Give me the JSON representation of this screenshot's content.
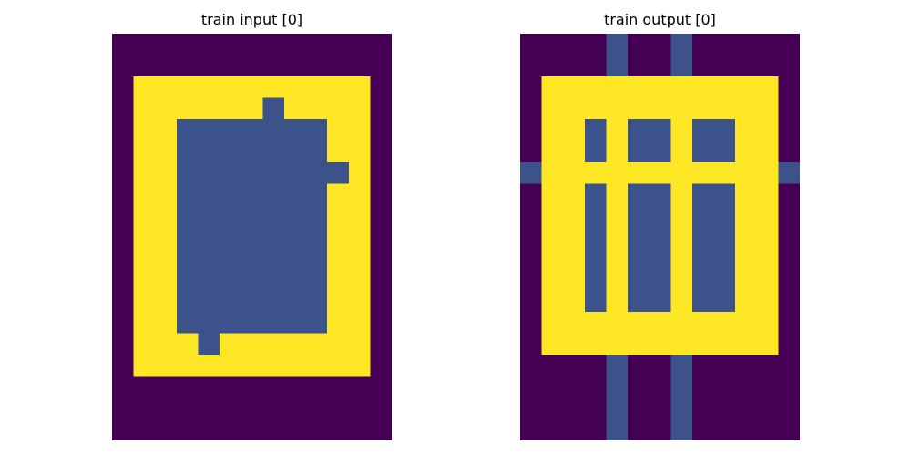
{
  "palette": {
    "0": "#440154",
    "1": "#3b528b",
    "2": "#fde725"
  },
  "panels": [
    {
      "title": "train input [0]",
      "grid": [
        [
          0,
          0,
          0,
          0,
          0,
          0,
          0,
          0,
          0,
          0,
          0,
          0,
          0
        ],
        [
          0,
          0,
          0,
          0,
          0,
          0,
          0,
          0,
          0,
          0,
          0,
          0,
          0
        ],
        [
          0,
          2,
          2,
          2,
          2,
          2,
          2,
          2,
          2,
          2,
          2,
          2,
          0
        ],
        [
          0,
          2,
          2,
          2,
          2,
          2,
          2,
          1,
          2,
          2,
          2,
          2,
          0
        ],
        [
          0,
          2,
          2,
          1,
          1,
          1,
          1,
          1,
          1,
          1,
          2,
          2,
          0
        ],
        [
          0,
          2,
          2,
          1,
          1,
          1,
          1,
          1,
          1,
          1,
          2,
          2,
          0
        ],
        [
          0,
          2,
          2,
          1,
          1,
          1,
          1,
          1,
          1,
          1,
          1,
          2,
          0
        ],
        [
          0,
          2,
          2,
          1,
          1,
          1,
          1,
          1,
          1,
          1,
          2,
          2,
          0
        ],
        [
          0,
          2,
          2,
          1,
          1,
          1,
          1,
          1,
          1,
          1,
          2,
          2,
          0
        ],
        [
          0,
          2,
          2,
          1,
          1,
          1,
          1,
          1,
          1,
          1,
          2,
          2,
          0
        ],
        [
          0,
          2,
          2,
          1,
          1,
          1,
          1,
          1,
          1,
          1,
          2,
          2,
          0
        ],
        [
          0,
          2,
          2,
          1,
          1,
          1,
          1,
          1,
          1,
          1,
          2,
          2,
          0
        ],
        [
          0,
          2,
          2,
          1,
          1,
          1,
          1,
          1,
          1,
          1,
          2,
          2,
          0
        ],
        [
          0,
          2,
          2,
          1,
          1,
          1,
          1,
          1,
          1,
          1,
          2,
          2,
          0
        ],
        [
          0,
          2,
          2,
          2,
          1,
          2,
          2,
          2,
          2,
          2,
          2,
          2,
          0
        ],
        [
          0,
          2,
          2,
          2,
          2,
          2,
          2,
          2,
          2,
          2,
          2,
          2,
          0
        ],
        [
          0,
          0,
          0,
          0,
          0,
          0,
          0,
          0,
          0,
          0,
          0,
          0,
          0
        ],
        [
          0,
          0,
          0,
          0,
          0,
          0,
          0,
          0,
          0,
          0,
          0,
          0,
          0
        ],
        [
          0,
          0,
          0,
          0,
          0,
          0,
          0,
          0,
          0,
          0,
          0,
          0,
          0
        ]
      ]
    },
    {
      "title": "train output [0]",
      "grid": [
        [
          0,
          0,
          0,
          0,
          1,
          0,
          0,
          1,
          0,
          0,
          0,
          0,
          0
        ],
        [
          0,
          0,
          0,
          0,
          1,
          0,
          0,
          1,
          0,
          0,
          0,
          0,
          0
        ],
        [
          0,
          2,
          2,
          2,
          2,
          2,
          2,
          2,
          2,
          2,
          2,
          2,
          0
        ],
        [
          0,
          2,
          2,
          2,
          2,
          2,
          2,
          2,
          2,
          2,
          2,
          2,
          0
        ],
        [
          0,
          2,
          2,
          1,
          2,
          1,
          1,
          2,
          1,
          1,
          2,
          2,
          0
        ],
        [
          0,
          2,
          2,
          1,
          2,
          1,
          1,
          2,
          1,
          1,
          2,
          2,
          0
        ],
        [
          1,
          2,
          2,
          2,
          2,
          2,
          2,
          2,
          2,
          2,
          2,
          2,
          1
        ],
        [
          0,
          2,
          2,
          1,
          2,
          1,
          1,
          2,
          1,
          1,
          2,
          2,
          0
        ],
        [
          0,
          2,
          2,
          1,
          2,
          1,
          1,
          2,
          1,
          1,
          2,
          2,
          0
        ],
        [
          0,
          2,
          2,
          1,
          2,
          1,
          1,
          2,
          1,
          1,
          2,
          2,
          0
        ],
        [
          0,
          2,
          2,
          1,
          2,
          1,
          1,
          2,
          1,
          1,
          2,
          2,
          0
        ],
        [
          0,
          2,
          2,
          1,
          2,
          1,
          1,
          2,
          1,
          1,
          2,
          2,
          0
        ],
        [
          0,
          2,
          2,
          1,
          2,
          1,
          1,
          2,
          1,
          1,
          2,
          2,
          0
        ],
        [
          0,
          2,
          2,
          2,
          2,
          2,
          2,
          2,
          2,
          2,
          2,
          2,
          0
        ],
        [
          0,
          2,
          2,
          2,
          2,
          2,
          2,
          2,
          2,
          2,
          2,
          2,
          0
        ],
        [
          0,
          0,
          0,
          0,
          1,
          0,
          0,
          1,
          0,
          0,
          0,
          0,
          0
        ],
        [
          0,
          0,
          0,
          0,
          1,
          0,
          0,
          1,
          0,
          0,
          0,
          0,
          0
        ],
        [
          0,
          0,
          0,
          0,
          1,
          0,
          0,
          1,
          0,
          0,
          0,
          0,
          0
        ],
        [
          0,
          0,
          0,
          0,
          1,
          0,
          0,
          1,
          0,
          0,
          0,
          0,
          0
        ]
      ]
    }
  ]
}
